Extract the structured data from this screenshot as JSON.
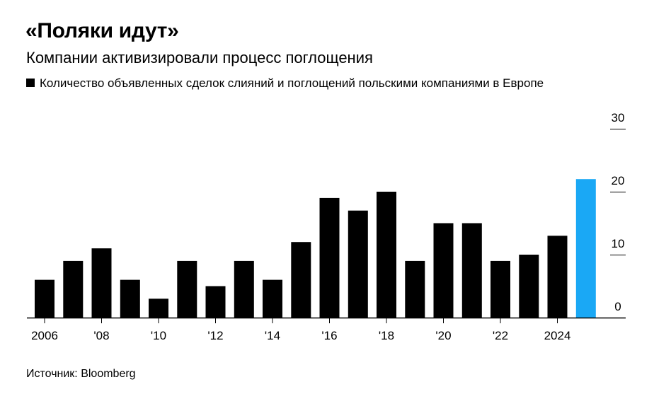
{
  "header": {
    "title": "«Поляки идут»",
    "subtitle": "Компании активизировали процесс поглощения"
  },
  "legend": {
    "label": "Количество объявленных сделок слияний и поглощений польскими компаниями в Европе"
  },
  "footer": {
    "source": "Источник: Bloomberg"
  },
  "chart_data": {
    "type": "bar",
    "title": "«Поляки идут»",
    "subtitle": "Компании активизировали процесс поглощения",
    "xlabel": "",
    "ylabel": "",
    "categories": [
      "2006",
      "2007",
      "2008",
      "2009",
      "2010",
      "2011",
      "2012",
      "2013",
      "2014",
      "2015",
      "2016",
      "2017",
      "2018",
      "2019",
      "2020",
      "2021",
      "2022",
      "2023",
      "2024",
      "2025"
    ],
    "series": [
      {
        "name": "Количество объявленных сделок слияний и поглощений польскими компаниями в Европе",
        "values": [
          6,
          9,
          11,
          6,
          3,
          9,
          5,
          9,
          6,
          12,
          19,
          17,
          20,
          9,
          15,
          15,
          9,
          10,
          13,
          22
        ]
      }
    ],
    "highlight_index": 19,
    "colors": {
      "bar": "#000000",
      "highlight": "#1aa8f5"
    },
    "ylim": [
      0,
      30
    ],
    "y_ticks": [
      0,
      10,
      20,
      30
    ],
    "x_tick_labels": [
      "2006",
      "'08",
      "'10",
      "'12",
      "'14",
      "'16",
      "'18",
      "'20",
      "'22",
      "2024"
    ],
    "x_tick_every": 2,
    "y_axis_position": "right",
    "grid": false,
    "legend_position": "top-left"
  }
}
